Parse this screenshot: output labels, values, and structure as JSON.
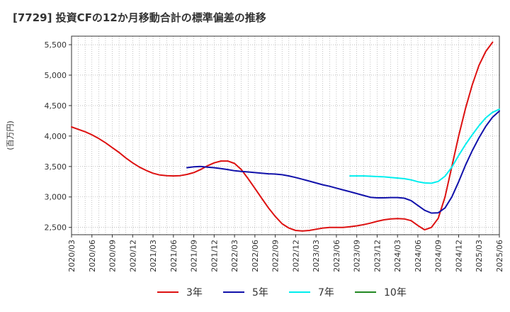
{
  "chart_data": {
    "type": "line",
    "title": "[7729]  投資CFの12か月移動合計の標準偏差の推移",
    "ylabel": "(百万円)",
    "xlabel": "",
    "ylim": [
      2380,
      5640
    ],
    "yticks": [
      2500,
      3000,
      3500,
      4000,
      4500,
      5000,
      5500
    ],
    "ytick_labels": [
      "2,500",
      "3,000",
      "3,500",
      "4,000",
      "4,500",
      "5,000",
      "5,500"
    ],
    "xticks": [
      "2020/03",
      "2020/06",
      "2020/09",
      "2020/12",
      "2021/03",
      "2021/06",
      "2021/09",
      "2021/12",
      "2022/03",
      "2022/06",
      "2022/09",
      "2022/12",
      "2023/03",
      "2023/06",
      "2023/09",
      "2023/12",
      "2024/03",
      "2024/06",
      "2024/09",
      "2024/12",
      "2025/03",
      "2025/06"
    ],
    "grid": true,
    "legend_position": "bottom",
    "series": [
      {
        "name": "3年",
        "color": "#dd1111",
        "points": [
          [
            "2020/03",
            4150
          ],
          [
            "2020/04",
            4110
          ],
          [
            "2020/05",
            4070
          ],
          [
            "2020/06",
            4020
          ],
          [
            "2020/07",
            3960
          ],
          [
            "2020/08",
            3890
          ],
          [
            "2020/09",
            3810
          ],
          [
            "2020/10",
            3730
          ],
          [
            "2020/11",
            3640
          ],
          [
            "2020/12",
            3560
          ],
          [
            "2021/01",
            3490
          ],
          [
            "2021/02",
            3435
          ],
          [
            "2021/03",
            3390
          ],
          [
            "2021/04",
            3360
          ],
          [
            "2021/05",
            3350
          ],
          [
            "2021/06",
            3345
          ],
          [
            "2021/07",
            3350
          ],
          [
            "2021/08",
            3370
          ],
          [
            "2021/09",
            3400
          ],
          [
            "2021/10",
            3450
          ],
          [
            "2021/11",
            3510
          ],
          [
            "2021/12",
            3560
          ],
          [
            "2022/01",
            3590
          ],
          [
            "2022/02",
            3590
          ],
          [
            "2022/03",
            3550
          ],
          [
            "2022/04",
            3450
          ],
          [
            "2022/05",
            3300
          ],
          [
            "2022/06",
            3140
          ],
          [
            "2022/07",
            2980
          ],
          [
            "2022/08",
            2820
          ],
          [
            "2022/09",
            2680
          ],
          [
            "2022/10",
            2560
          ],
          [
            "2022/11",
            2490
          ],
          [
            "2022/12",
            2450
          ],
          [
            "2023/01",
            2440
          ],
          [
            "2023/02",
            2450
          ],
          [
            "2023/03",
            2470
          ],
          [
            "2023/04",
            2490
          ],
          [
            "2023/05",
            2500
          ],
          [
            "2023/06",
            2500
          ],
          [
            "2023/07",
            2500
          ],
          [
            "2023/08",
            2510
          ],
          [
            "2023/09",
            2525
          ],
          [
            "2023/10",
            2545
          ],
          [
            "2023/11",
            2570
          ],
          [
            "2023/12",
            2600
          ],
          [
            "2024/01",
            2625
          ],
          [
            "2024/02",
            2640
          ],
          [
            "2024/03",
            2645
          ],
          [
            "2024/04",
            2640
          ],
          [
            "2024/05",
            2610
          ],
          [
            "2024/06",
            2530
          ],
          [
            "2024/07",
            2460
          ],
          [
            "2024/08",
            2500
          ],
          [
            "2024/09",
            2650
          ],
          [
            "2024/10",
            3000
          ],
          [
            "2024/11",
            3500
          ],
          [
            "2024/12",
            4000
          ],
          [
            "2025/01",
            4450
          ],
          [
            "2025/02",
            4840
          ],
          [
            "2025/03",
            5160
          ],
          [
            "2025/04",
            5390
          ],
          [
            "2025/05",
            5540
          ]
        ]
      },
      {
        "name": "5年",
        "color": "#1111aa",
        "points": [
          [
            "2021/08",
            3480
          ],
          [
            "2021/09",
            3495
          ],
          [
            "2021/10",
            3500
          ],
          [
            "2021/11",
            3490
          ],
          [
            "2021/12",
            3480
          ],
          [
            "2022/01",
            3465
          ],
          [
            "2022/02",
            3450
          ],
          [
            "2022/03",
            3430
          ],
          [
            "2022/04",
            3420
          ],
          [
            "2022/05",
            3410
          ],
          [
            "2022/06",
            3400
          ],
          [
            "2022/07",
            3390
          ],
          [
            "2022/08",
            3380
          ],
          [
            "2022/09",
            3375
          ],
          [
            "2022/10",
            3365
          ],
          [
            "2022/11",
            3345
          ],
          [
            "2022/12",
            3320
          ],
          [
            "2023/01",
            3290
          ],
          [
            "2023/02",
            3260
          ],
          [
            "2023/03",
            3230
          ],
          [
            "2023/04",
            3200
          ],
          [
            "2023/05",
            3175
          ],
          [
            "2023/06",
            3145
          ],
          [
            "2023/07",
            3115
          ],
          [
            "2023/08",
            3085
          ],
          [
            "2023/09",
            3055
          ],
          [
            "2023/10",
            3025
          ],
          [
            "2023/11",
            2995
          ],
          [
            "2023/12",
            2985
          ],
          [
            "2024/01",
            2985
          ],
          [
            "2024/02",
            2990
          ],
          [
            "2024/03",
            2990
          ],
          [
            "2024/04",
            2980
          ],
          [
            "2024/05",
            2940
          ],
          [
            "2024/06",
            2860
          ],
          [
            "2024/07",
            2780
          ],
          [
            "2024/08",
            2735
          ],
          [
            "2024/09",
            2740
          ],
          [
            "2024/10",
            2820
          ],
          [
            "2024/11",
            3000
          ],
          [
            "2024/12",
            3250
          ],
          [
            "2025/01",
            3520
          ],
          [
            "2025/02",
            3760
          ],
          [
            "2025/03",
            3970
          ],
          [
            "2025/04",
            4160
          ],
          [
            "2025/05",
            4310
          ],
          [
            "2025/06",
            4410
          ]
        ]
      },
      {
        "name": "7年",
        "color": "#00eeee",
        "points": [
          [
            "2023/08",
            3345
          ],
          [
            "2023/09",
            3345
          ],
          [
            "2023/10",
            3345
          ],
          [
            "2023/11",
            3340
          ],
          [
            "2023/12",
            3335
          ],
          [
            "2024/01",
            3330
          ],
          [
            "2024/02",
            3320
          ],
          [
            "2024/03",
            3310
          ],
          [
            "2024/04",
            3300
          ],
          [
            "2024/05",
            3280
          ],
          [
            "2024/06",
            3250
          ],
          [
            "2024/07",
            3230
          ],
          [
            "2024/08",
            3225
          ],
          [
            "2024/09",
            3255
          ],
          [
            "2024/10",
            3340
          ],
          [
            "2024/11",
            3490
          ],
          [
            "2024/12",
            3680
          ],
          [
            "2025/01",
            3860
          ],
          [
            "2025/02",
            4020
          ],
          [
            "2025/03",
            4170
          ],
          [
            "2025/04",
            4300
          ],
          [
            "2025/05",
            4390
          ],
          [
            "2025/06",
            4440
          ]
        ]
      },
      {
        "name": "10年",
        "color": "#228822",
        "points": []
      }
    ]
  }
}
